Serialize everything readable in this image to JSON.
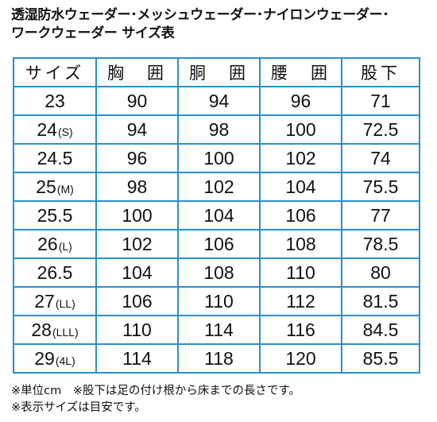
{
  "title": {
    "line1": "透湿防水ウェーダー･メッシュウェーダー･ナイロンウェーダー･",
    "line2": "ワークウェーダー サイズ表"
  },
  "table": {
    "headers": [
      "サイズ",
      "胸　囲",
      "胴　囲",
      "腰　囲",
      "股下"
    ],
    "rows": [
      {
        "size": "23",
        "label": "",
        "chest": "90",
        "waist": "94",
        "hip": "96",
        "inseam": "71"
      },
      {
        "size": "24",
        "label": "(S)",
        "chest": "94",
        "waist": "98",
        "hip": "100",
        "inseam": "72.5"
      },
      {
        "size": "24.5",
        "label": "",
        "chest": "96",
        "waist": "100",
        "hip": "102",
        "inseam": "74"
      },
      {
        "size": "25",
        "label": "(M)",
        "chest": "98",
        "waist": "102",
        "hip": "104",
        "inseam": "75.5"
      },
      {
        "size": "25.5",
        "label": "",
        "chest": "100",
        "waist": "104",
        "hip": "106",
        "inseam": "77"
      },
      {
        "size": "26",
        "label": "(L)",
        "chest": "102",
        "waist": "106",
        "hip": "108",
        "inseam": "78.5"
      },
      {
        "size": "26.5",
        "label": "",
        "chest": "104",
        "waist": "108",
        "hip": "110",
        "inseam": "80"
      },
      {
        "size": "27",
        "label": "(LL)",
        "chest": "106",
        "waist": "110",
        "hip": "112",
        "inseam": "81.5"
      },
      {
        "size": "28",
        "label": "(LLL)",
        "chest": "110",
        "waist": "114",
        "hip": "116",
        "inseam": "84.5"
      },
      {
        "size": "29",
        "label": "(4L)",
        "chest": "114",
        "waist": "118",
        "hip": "120",
        "inseam": "85.5"
      }
    ]
  },
  "notes": {
    "line1": "※単位cm　※股下は足の付け根から床までの長さです。",
    "line2": "※表示サイズは目安です。"
  },
  "colors": {
    "border": "#2a8fcf"
  }
}
